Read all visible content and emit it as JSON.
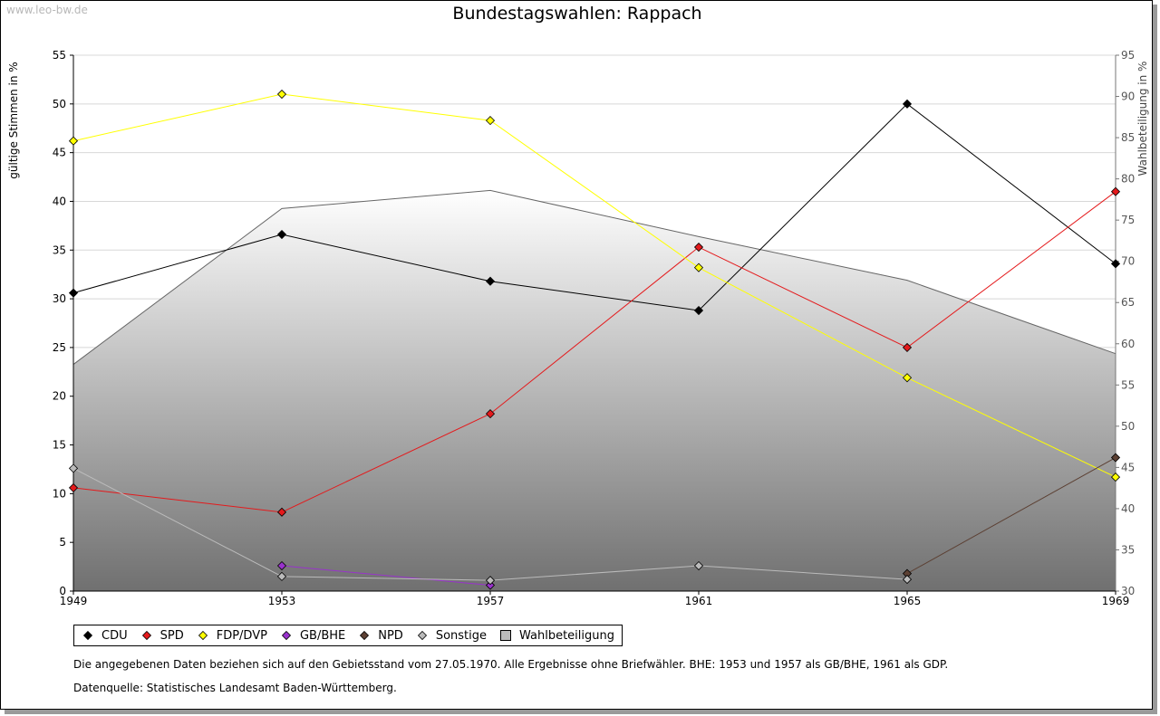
{
  "watermark": "www.leo-bw.de",
  "title": "Bundestagswahlen: Rappach",
  "note": "Die angegebenen Daten beziehen sich auf den Gebietsstand vom 27.05.1970. Alle Ergebnisse ohne Briefwähler. BHE: 1953 und 1957 als GB/BHE, 1961 als GDP.",
  "source": "Datenquelle: Statistisches Landesamt Baden-Württemberg.",
  "chart_data": {
    "type": "line",
    "title": "Bundestagswahlen: Rappach",
    "ylabel": "gültige Stimmen in %",
    "y2label": "Wahlbeteiligung in %",
    "x": [
      "1949",
      "1953",
      "1957",
      "1961",
      "1965",
      "1969"
    ],
    "ylim": [
      0,
      55
    ],
    "yticks": [
      0,
      5,
      10,
      15,
      20,
      25,
      30,
      35,
      40,
      45,
      50,
      55
    ],
    "y2lim": [
      30,
      95
    ],
    "y2ticks": [
      30,
      35,
      40,
      45,
      50,
      55,
      60,
      65,
      70,
      75,
      80,
      85,
      90,
      95
    ],
    "grid": true,
    "legend_position": "bottom",
    "series": [
      {
        "name": "CDU",
        "color": "#000000",
        "axis": "left",
        "values": [
          30.6,
          36.6,
          31.8,
          28.8,
          50.0,
          33.6
        ]
      },
      {
        "name": "SPD",
        "color": "#e41a1c",
        "axis": "left",
        "values": [
          10.6,
          8.1,
          18.2,
          35.3,
          25.0,
          41.0
        ]
      },
      {
        "name": "FDP/DVP",
        "color": "#ffff00",
        "axis": "left",
        "values": [
          46.2,
          51.0,
          48.3,
          33.2,
          21.9,
          11.7
        ]
      },
      {
        "name": "GB/BHE",
        "color": "#9932cc",
        "axis": "left",
        "values": [
          null,
          2.6,
          0.6,
          null,
          null,
          null
        ]
      },
      {
        "name": "NPD",
        "color": "#5c4033",
        "axis": "left",
        "values": [
          null,
          null,
          null,
          null,
          1.8,
          13.7
        ]
      },
      {
        "name": "Sonstige",
        "color": "#bbbbbb",
        "axis": "left",
        "values": [
          12.6,
          1.5,
          1.1,
          2.6,
          1.2,
          null
        ]
      }
    ],
    "area": {
      "name": "Wahlbeteiligung",
      "color": "#888888",
      "axis": "right",
      "values": [
        57.5,
        76.4,
        78.6,
        73.0,
        67.7,
        58.8
      ]
    }
  }
}
